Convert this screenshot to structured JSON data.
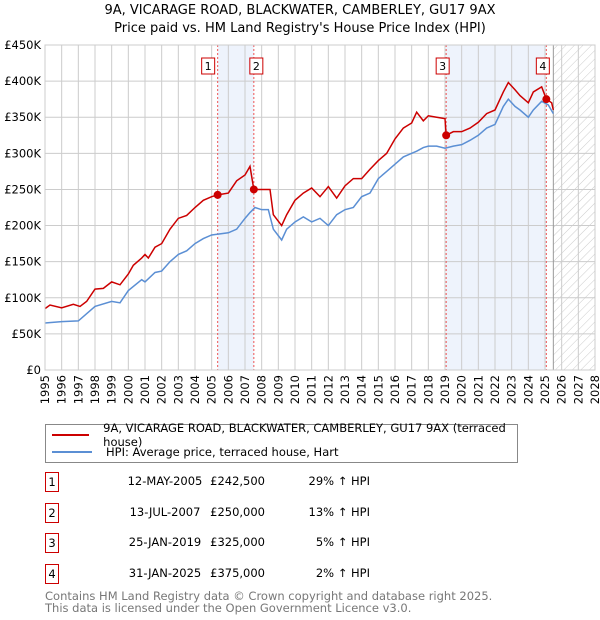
{
  "chart_data": {
    "type": "line",
    "title": "9A, VICARAGE ROAD, BLACKWATER, CAMBERLEY, GU17 9AX",
    "subtitle": "Price paid vs. HM Land Registry's House Price Index (HPI)",
    "xlim": [
      1995,
      2028
    ],
    "ylim": [
      0,
      450000
    ],
    "yticks": [
      {
        "v": 0,
        "label": "£0"
      },
      {
        "v": 50000,
        "label": "£50K"
      },
      {
        "v": 100000,
        "label": "£100K"
      },
      {
        "v": 150000,
        "label": "£150K"
      },
      {
        "v": 200000,
        "label": "£200K"
      },
      {
        "v": 250000,
        "label": "£250K"
      },
      {
        "v": 300000,
        "label": "£300K"
      },
      {
        "v": 350000,
        "label": "£350K"
      },
      {
        "v": 400000,
        "label": "£400K"
      },
      {
        "v": 450000,
        "label": "£450K"
      }
    ],
    "xticks": [
      "1995",
      "1996",
      "1997",
      "1998",
      "1999",
      "2000",
      "2001",
      "2002",
      "2003",
      "2004",
      "2005",
      "2006",
      "2007",
      "2008",
      "2009",
      "2010",
      "2011",
      "2012",
      "2013",
      "2014",
      "2015",
      "2016",
      "2017",
      "2018",
      "2019",
      "2020",
      "2021",
      "2022",
      "2023",
      "2024",
      "2025",
      "2026",
      "2027",
      "2028"
    ],
    "grid": true,
    "forecast_from": 2025.5,
    "shaded_ranges": [
      [
        2005.36,
        2007.53
      ],
      [
        2019.07,
        2025.08
      ]
    ],
    "series": [
      {
        "name": "9A, VICARAGE ROAD, BLACKWATER, CAMBERLEY, GU17 9AX (terraced house)",
        "color": "#cc0000",
        "x": [
          1995,
          1995.3,
          1996,
          1996.7,
          1997.1,
          1997.5,
          1998,
          1998.5,
          1999,
          1999.5,
          2000,
          2000.3,
          2000.8,
          2001,
          2001.2,
          2001.6,
          2002,
          2002.5,
          2003,
          2003.5,
          2004,
          2004.5,
          2005,
          2005.36,
          2006,
          2006.5,
          2007,
          2007.3,
          2007.53,
          2008,
          2008.5,
          2008.7,
          2009.2,
          2009.5,
          2010,
          2010.5,
          2011,
          2011.5,
          2012,
          2012.5,
          2013,
          2013.5,
          2014,
          2014.5,
          2015,
          2015.5,
          2016,
          2016.5,
          2017,
          2017.3,
          2017.7,
          2018,
          2018.5,
          2019,
          2019.07,
          2019.5,
          2020,
          2020.5,
          2021,
          2021.5,
          2022,
          2022.5,
          2022.8,
          2023.2,
          2023.5,
          2024,
          2024.3,
          2024.8,
          2025.08,
          2025.4,
          2025.5
        ],
        "y": [
          85000,
          90000,
          86000,
          91000,
          88000,
          95000,
          112000,
          113000,
          122000,
          118000,
          133000,
          145000,
          155000,
          160000,
          155000,
          170000,
          175000,
          195000,
          210000,
          214000,
          225000,
          235000,
          240000,
          242500,
          245000,
          262000,
          270000,
          282000,
          250000,
          250000,
          250000,
          215000,
          200000,
          215000,
          235000,
          245000,
          252000,
          240000,
          254000,
          238000,
          255000,
          265000,
          265000,
          278000,
          290000,
          300000,
          320000,
          335000,
          342000,
          357000,
          345000,
          352000,
          350000,
          348000,
          325000,
          330000,
          330000,
          335000,
          343000,
          355000,
          360000,
          385000,
          398000,
          388000,
          380000,
          370000,
          385000,
          392000,
          375000,
          370000,
          360000
        ]
      },
      {
        "name": "HPI: Average price, terraced house, Hart",
        "color": "#5b8fd4",
        "x": [
          1995,
          1996,
          1997,
          1998,
          1999,
          1999.5,
          2000,
          2000.8,
          2001,
          2001.6,
          2002,
          2002.5,
          2003,
          2003.5,
          2004,
          2004.5,
          2005,
          2006,
          2006.5,
          2007,
          2007.3,
          2007.6,
          2008,
          2008.4,
          2008.7,
          2009.2,
          2009.5,
          2010,
          2010.5,
          2011,
          2011.5,
          2012,
          2012.5,
          2013,
          2013.5,
          2014,
          2014.5,
          2015,
          2015.5,
          2016,
          2016.5,
          2017,
          2017.3,
          2017.7,
          2018,
          2018.5,
          2019,
          2019.5,
          2020,
          2020.5,
          2021,
          2021.5,
          2022,
          2022.5,
          2022.8,
          2023.2,
          2023.5,
          2024,
          2024.3,
          2024.8,
          2025.2,
          2025.5
        ],
        "y": [
          65000,
          67000,
          68000,
          88000,
          95000,
          93000,
          110000,
          125000,
          122000,
          135000,
          137000,
          150000,
          160000,
          165000,
          175000,
          182000,
          187000,
          190000,
          195000,
          210000,
          218000,
          225000,
          222000,
          222000,
          195000,
          180000,
          195000,
          205000,
          212000,
          205000,
          210000,
          200000,
          215000,
          222000,
          225000,
          240000,
          245000,
          265000,
          275000,
          285000,
          295000,
          300000,
          303000,
          308000,
          310000,
          310000,
          307000,
          310000,
          312000,
          318000,
          325000,
          335000,
          340000,
          365000,
          375000,
          365000,
          360000,
          350000,
          360000,
          372000,
          367000,
          355000
        ]
      }
    ],
    "sales": [
      {
        "label": "1",
        "x": 2005.36,
        "y": 242500
      },
      {
        "label": "2",
        "x": 2007.53,
        "y": 250000
      },
      {
        "label": "3",
        "x": 2019.07,
        "y": 325000
      },
      {
        "label": "4",
        "x": 2025.08,
        "y": 375000
      }
    ]
  },
  "header": {
    "line1": "9A, VICARAGE ROAD, BLACKWATER, CAMBERLEY, GU17 9AX",
    "line2": "Price paid vs. HM Land Registry's House Price Index (HPI)"
  },
  "legend": {
    "property": "9A, VICARAGE ROAD, BLACKWATER, CAMBERLEY, GU17 9AX (terraced house)",
    "hpi": "HPI: Average price, terraced house, Hart"
  },
  "transactions": [
    {
      "num": "1",
      "date": "12-MAY-2005",
      "price": "£242,500",
      "hpi": "29% ↑ HPI"
    },
    {
      "num": "2",
      "date": "13-JUL-2007",
      "price": "£250,000",
      "hpi": "13% ↑ HPI"
    },
    {
      "num": "3",
      "date": "25-JAN-2019",
      "price": "£325,000",
      "hpi": "5% ↑ HPI"
    },
    {
      "num": "4",
      "date": "31-JAN-2025",
      "price": "£375,000",
      "hpi": "2% ↑ HPI"
    }
  ],
  "footer": {
    "line1": "Contains HM Land Registry data © Crown copyright and database right 2025.",
    "line2": "This data is licensed under the Open Government Licence v3.0."
  }
}
